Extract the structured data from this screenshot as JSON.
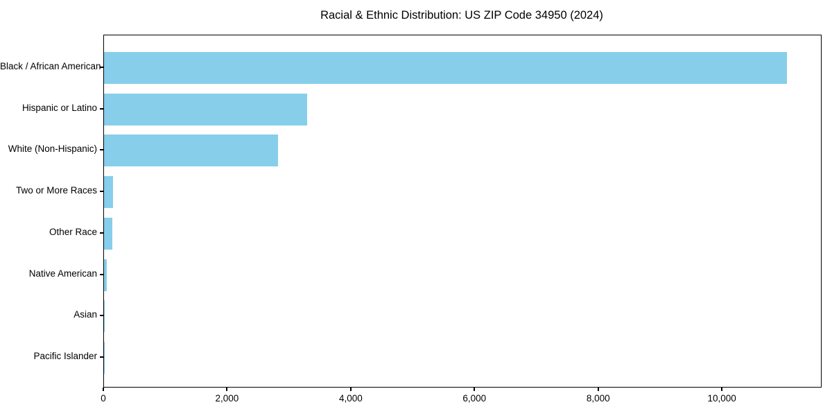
{
  "chart_data": {
    "type": "bar",
    "orientation": "horizontal",
    "title": "Racial & Ethnic Distribution: US ZIP Code 34950 (2024)",
    "categories": [
      "Black / African American",
      "Hispanic or Latino",
      "White (Non-Hispanic)",
      "Two or More Races",
      "Other Race",
      "Native American",
      "Asian",
      "Pacific Islander"
    ],
    "values": [
      11040,
      3280,
      2810,
      150,
      140,
      45,
      10,
      5
    ],
    "xlabel": "",
    "ylabel": "",
    "xlim": [
      0,
      11590
    ],
    "xticks": [
      0,
      2000,
      4000,
      6000,
      8000,
      10000
    ],
    "xtick_labels": [
      "0",
      "2,000",
      "4,000",
      "6,000",
      "8,000",
      "10,000"
    ],
    "bar_color": "#87CEEB",
    "axis_color": "#000000",
    "text_color": "#000000",
    "grid": false,
    "legend_position": "none"
  }
}
